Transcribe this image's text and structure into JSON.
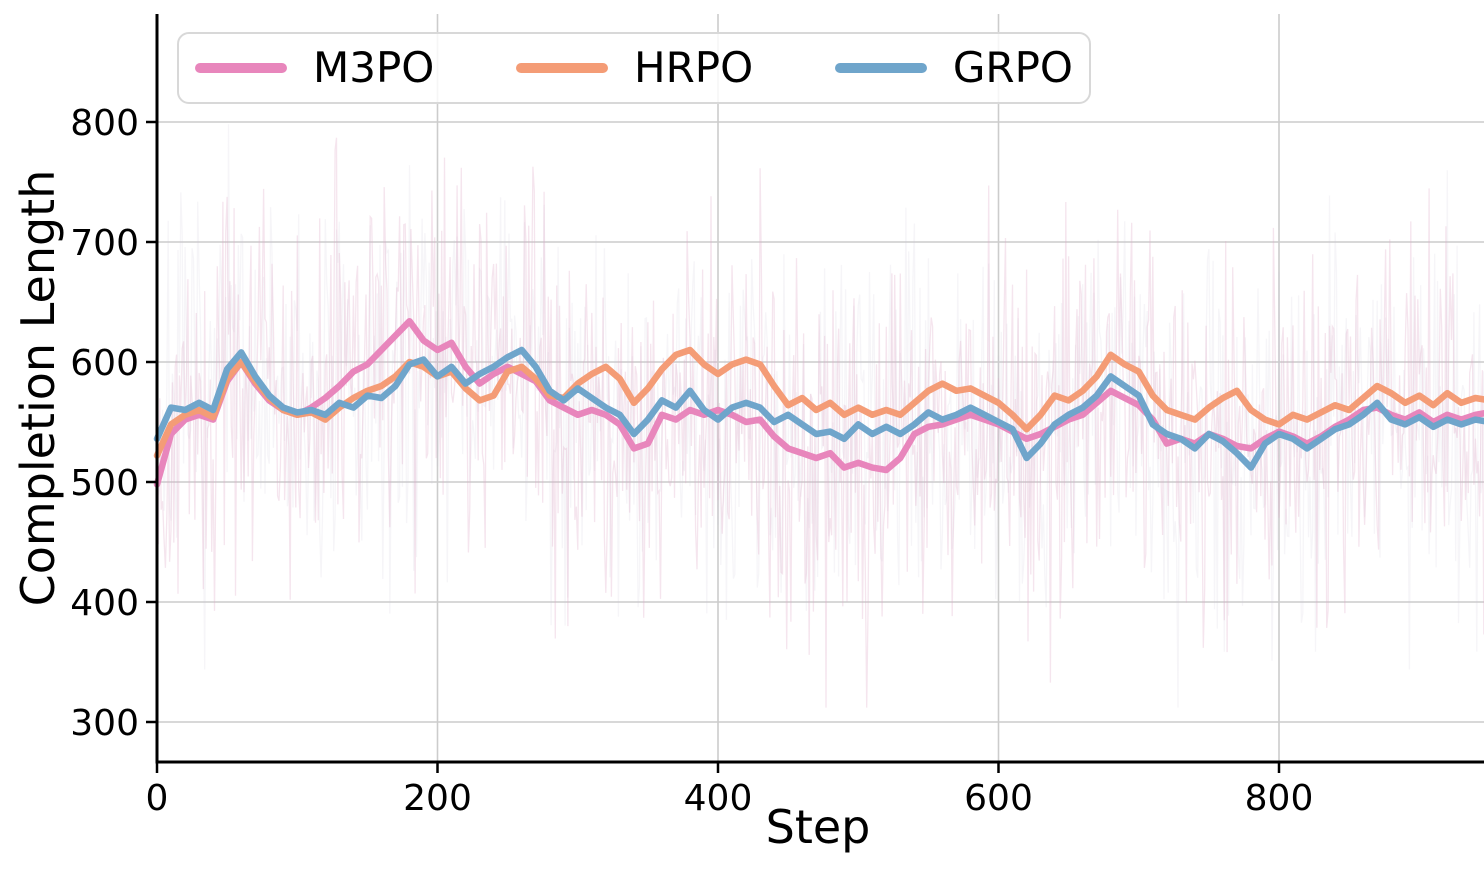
{
  "chart_data": {
    "type": "line",
    "title": "",
    "xlabel": "Step",
    "ylabel": "Completion Length",
    "xlim": [
      0,
      946
    ],
    "ylim": [
      266,
      890
    ],
    "xticks": [
      0,
      200,
      400,
      600,
      800
    ],
    "yticks": [
      300,
      400,
      500,
      600,
      700,
      800
    ],
    "grid": true,
    "grid_color": "#cccccc",
    "axis_color": "#000000",
    "legend": {
      "position": "upper left",
      "entries": [
        "M3PO",
        "HRPO",
        "GRPO"
      ]
    },
    "step_interval": 10,
    "series": [
      {
        "name": "M3PO",
        "color": "#e886bc",
        "values": [
          498,
          540,
          552,
          556,
          552,
          584,
          600,
          582,
          568,
          560,
          556,
          562,
          570,
          580,
          592,
          598,
          610,
          622,
          634,
          618,
          610,
          616,
          596,
          582,
          590,
          596,
          590,
          584,
          568,
          562,
          556,
          560,
          556,
          548,
          528,
          532,
          556,
          552,
          560,
          556,
          560,
          556,
          550,
          552,
          538,
          528,
          524,
          520,
          524,
          512,
          516,
          512,
          510,
          520,
          540,
          546,
          548,
          552,
          556,
          552,
          548,
          542,
          536,
          540,
          546,
          552,
          556,
          566,
          576,
          570,
          564,
          552,
          532,
          536,
          532,
          540,
          536,
          530,
          528,
          536,
          542,
          538,
          532,
          538,
          546,
          552,
          560,
          562,
          556,
          552,
          558,
          550,
          556,
          552,
          556,
          558
        ]
      },
      {
        "name": "HRPO",
        "color": "#f49c76",
        "values": [
          522,
          548,
          556,
          560,
          554,
          586,
          600,
          584,
          570,
          560,
          556,
          558,
          552,
          562,
          570,
          576,
          580,
          588,
          600,
          596,
          588,
          592,
          578,
          568,
          572,
          592,
          596,
          586,
          572,
          570,
          582,
          590,
          596,
          586,
          566,
          578,
          594,
          606,
          610,
          598,
          590,
          598,
          602,
          598,
          580,
          564,
          570,
          560,
          566,
          556,
          562,
          556,
          560,
          556,
          566,
          576,
          582,
          576,
          578,
          572,
          566,
          556,
          544,
          556,
          572,
          568,
          576,
          588,
          606,
          598,
          592,
          572,
          560,
          556,
          552,
          562,
          570,
          576,
          560,
          552,
          548,
          556,
          552,
          558,
          564,
          560,
          570,
          580,
          574,
          566,
          572,
          564,
          574,
          566,
          570,
          568
        ]
      },
      {
        "name": "GRPO",
        "color": "#6fa5cb",
        "values": [
          536,
          562,
          560,
          566,
          560,
          594,
          608,
          588,
          572,
          562,
          558,
          560,
          556,
          566,
          562,
          572,
          570,
          580,
          598,
          602,
          588,
          596,
          582,
          590,
          596,
          604,
          610,
          596,
          576,
          568,
          578,
          570,
          562,
          556,
          540,
          552,
          568,
          562,
          576,
          560,
          552,
          562,
          566,
          562,
          550,
          556,
          548,
          540,
          542,
          536,
          548,
          540,
          546,
          540,
          548,
          558,
          552,
          556,
          562,
          556,
          550,
          544,
          520,
          532,
          548,
          556,
          562,
          572,
          588,
          580,
          572,
          548,
          540,
          536,
          528,
          540,
          534,
          524,
          512,
          532,
          540,
          536,
          528,
          536,
          544,
          548,
          556,
          566,
          552,
          548,
          554,
          546,
          552,
          548,
          552,
          550
        ]
      }
    ],
    "raw_overlay": {
      "present": true,
      "description": "faint unsmoothed per-step values behind the smoothed curves",
      "colors": [
        "#dfa8c6",
        "#c7c0d2"
      ],
      "opacities": [
        0.3,
        0.16
      ],
      "amplitude": 135,
      "clamp": [
        312,
        845
      ]
    }
  }
}
